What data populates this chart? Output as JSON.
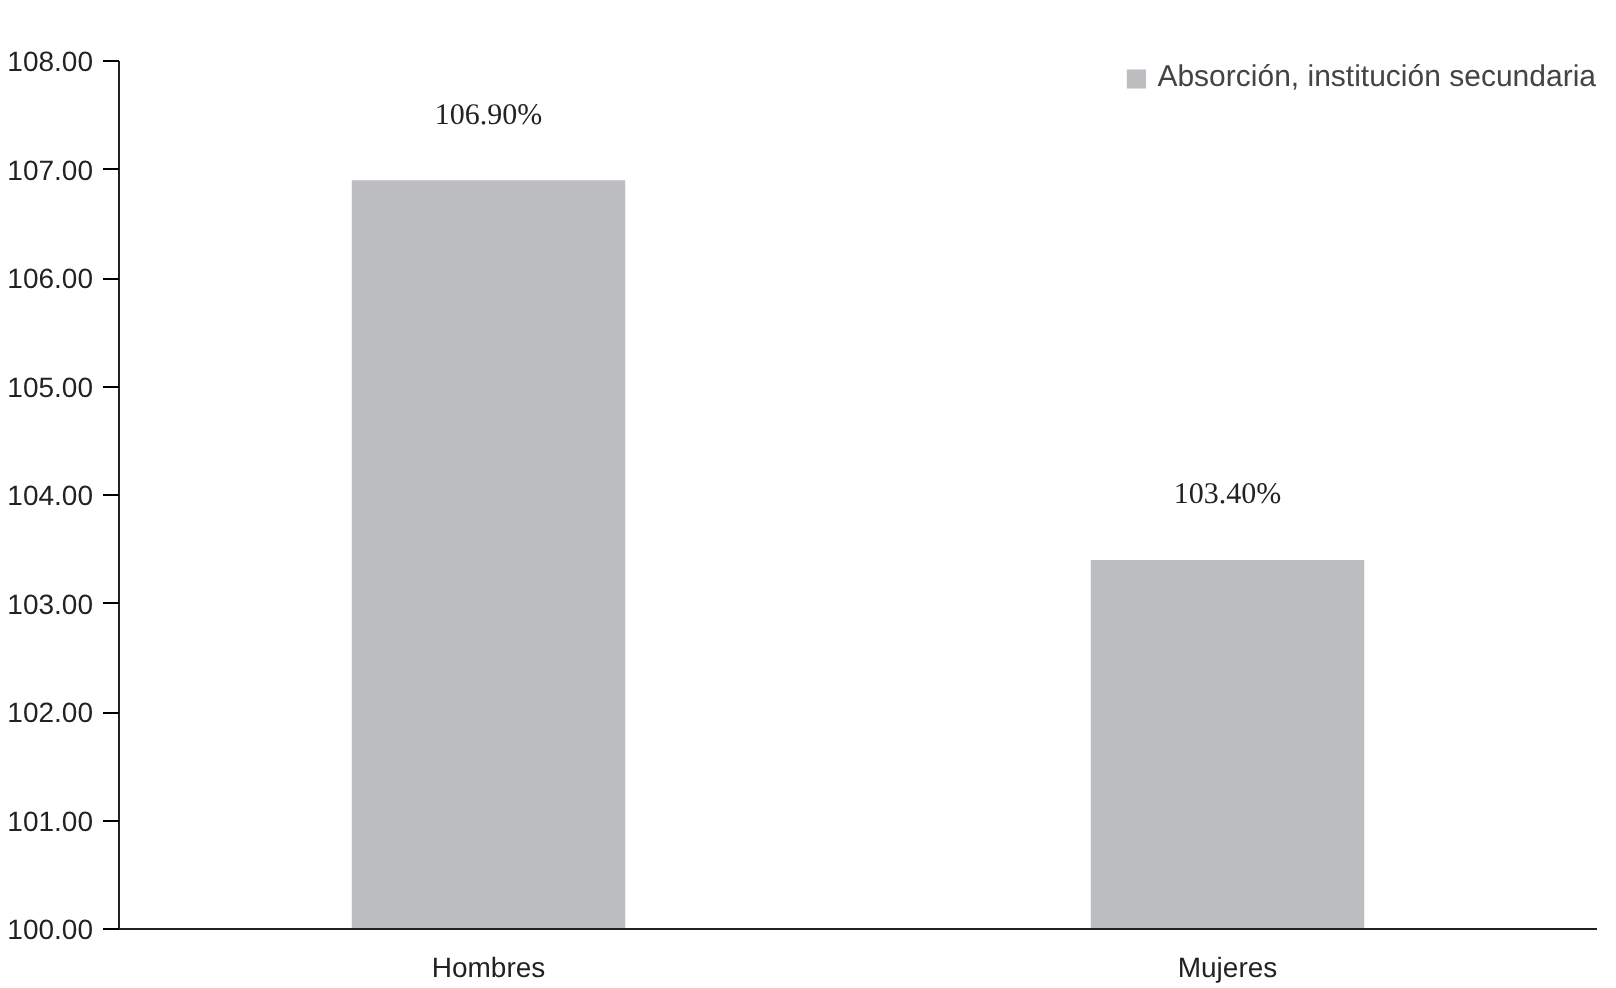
{
  "chart_data": {
    "type": "bar",
    "categories": [
      "Hombres",
      "Mujeres"
    ],
    "series": [
      {
        "name": "Absorción, institución secundaria",
        "color": "#bcbdc0",
        "values": [
          106.9,
          103.4
        ],
        "value_labels": [
          "106.90%",
          "103.40%"
        ]
      }
    ],
    "ylim": [
      100,
      108
    ],
    "yticks": [
      {
        "value": 100,
        "label": "100.00"
      },
      {
        "value": 101,
        "label": "101.00"
      },
      {
        "value": 102,
        "label": "102.00"
      },
      {
        "value": 103,
        "label": "103.00"
      },
      {
        "value": 104,
        "label": "104.00"
      },
      {
        "value": 105,
        "label": "105.00"
      },
      {
        "value": 106,
        "label": "106.00"
      },
      {
        "value": 107,
        "label": "107.00"
      },
      {
        "value": 108,
        "label": "108.00"
      }
    ],
    "grid": false,
    "legend": "top right"
  }
}
